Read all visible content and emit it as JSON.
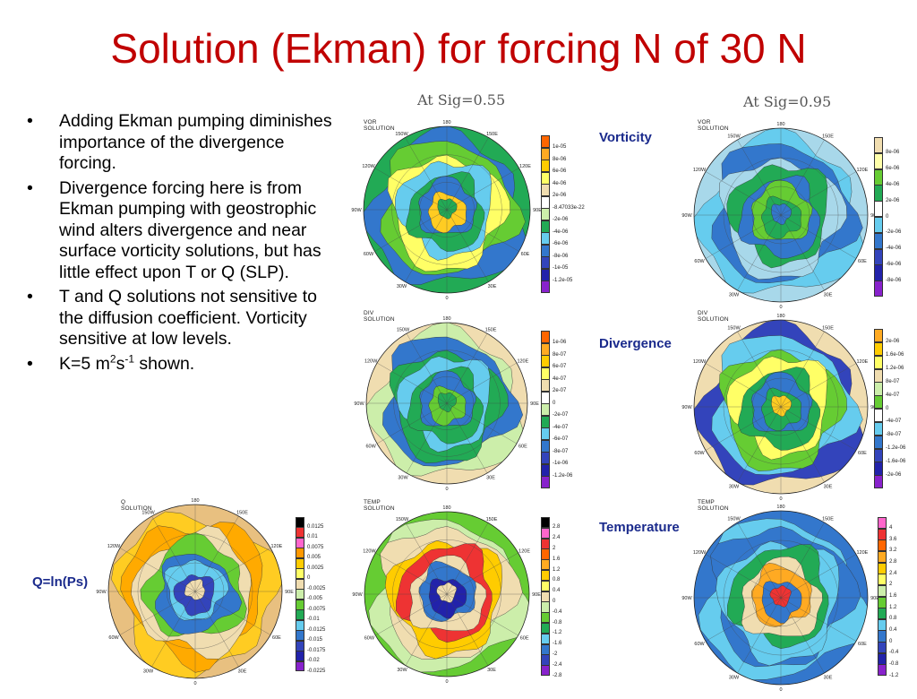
{
  "slide": {
    "title": "Solution (Ekman) for forcing N of 30 N",
    "bullets": [
      "Adding Ekman pumping diminishes importance of the divergence forcing.",
      "Divergence forcing here is from Ekman pumping with geostrophic wind alters divergence and near surface vorticity solutions, but has little effect upon T or Q (SLP).",
      "T and Q solutions not sensitive to the diffusion coefficient. Vorticity sensitive at low levels."
    ],
    "k_prefix": "K=5 m",
    "k_sup1": "2",
    "k_mid": "s",
    "k_sup2": "-1",
    "k_suffix": " shown."
  },
  "headers": {
    "left": "At Sig=0.55",
    "right": "At Sig=0.95"
  },
  "row_labels": {
    "vorticity": "Vorticity",
    "divergence": "Divergence",
    "temperature": "Temperature",
    "q": "Q=ln(Ps)"
  },
  "longitude_labels": {
    "top": "180",
    "tl": "150W",
    "tr": "150E",
    "ul": "120W",
    "ur": "120E",
    "ml": "90W",
    "mr": "90E",
    "ll": "60W",
    "lr": "60E",
    "bl": "30W",
    "br": "30E",
    "bottom": "0"
  },
  "panels": [
    {
      "id": "q",
      "title": "Q SOLUTION",
      "colors": [
        "#000000",
        "#ee3333",
        "#ff66cc",
        "#ff9900",
        "#ffcc00",
        "#ffff66",
        "#f0ddb0",
        "#cceeaa",
        "#66cc33",
        "#22aa55",
        "#66ccee",
        "#3377cc",
        "#3344bb",
        "#2222aa",
        "#8822cc"
      ],
      "ticks": [
        "0.0125",
        "0.01",
        "0.0075",
        "0.005",
        "0.0025",
        "0",
        "-0.0025",
        "-0.005",
        "-0.0075",
        "-0.01",
        "-0.0125",
        "-0.015",
        "-0.0175",
        "-0.02",
        "-0.0225"
      ],
      "rings": [
        "#e8c080",
        "#ffcc22",
        "#ffaa00",
        "#f0ddb0",
        "#66cc33",
        "#3377cc",
        "#66ccee",
        "#3344bb",
        "#f0ddb0"
      ]
    },
    {
      "id": "vor55",
      "title": "VOR SOLUTION",
      "colors": [
        "#ff6600",
        "#ffaa22",
        "#ffcc00",
        "#ffff66",
        "#f0ddb0",
        "#ffffff",
        "#cceeaa",
        "#22aa55",
        "#66ccee",
        "#3377cc",
        "#3344bb",
        "#2222aa",
        "#8822cc"
      ],
      "ticks": [
        "1e-05",
        "8e-06",
        "6e-06",
        "4e-06",
        "2e-06",
        "-8.47033e-22",
        "-2e-06",
        "-4e-06",
        "-6e-06",
        "-8e-06",
        "-1e-05",
        "-1.2e-05"
      ],
      "rings": [
        "#22aa55",
        "#3377cc",
        "#66cc33",
        "#ffff66",
        "#66ccee",
        "#22aa55",
        "#3377cc",
        "#ffcc22",
        "#22aa55"
      ]
    },
    {
      "id": "vor95",
      "title": "VOR SOLUTION",
      "colors": [
        "#f0ddb0",
        "#ffffaa",
        "#66cc33",
        "#22aa55",
        "#ffffff",
        "#66ccee",
        "#3377cc",
        "#3344bb",
        "#2222aa",
        "#8822cc"
      ],
      "ticks": [
        "8e-06",
        "6e-06",
        "4e-06",
        "2e-06",
        "0",
        "-2e-06",
        "-4e-06",
        "-6e-06",
        "-8e-06"
      ],
      "rings": [
        "#a8d8ea",
        "#66ccee",
        "#3377cc",
        "#a8d8ea",
        "#22aa55",
        "#3377cc",
        "#66cc33",
        "#22aa55",
        "#3377cc"
      ]
    },
    {
      "id": "div55",
      "title": "DIV SOLUTION",
      "colors": [
        "#ff6600",
        "#ffaa22",
        "#ffcc00",
        "#ffff66",
        "#f0ddb0",
        "#ffffff",
        "#cceeaa",
        "#22aa55",
        "#66ccee",
        "#3377cc",
        "#3344bb",
        "#2222aa",
        "#8822cc"
      ],
      "ticks": [
        "1e-06",
        "8e-07",
        "6e-07",
        "4e-07",
        "2e-07",
        "0",
        "-2e-07",
        "-4e-07",
        "-6e-07",
        "-8e-07",
        "-1e-06",
        "-1.2e-06"
      ],
      "rings": [
        "#f0ddb0",
        "#cceeaa",
        "#3377cc",
        "#22aa55",
        "#66ccee",
        "#22aa55",
        "#3377cc",
        "#66cc33",
        "#22aa55"
      ]
    },
    {
      "id": "div95",
      "title": "DIV SOLUTION",
      "colors": [
        "#ffaa22",
        "#ffcc00",
        "#ffff66",
        "#f0ddb0",
        "#cceeaa",
        "#66cc33",
        "#ffffff",
        "#66ccee",
        "#3377cc",
        "#3344bb",
        "#2222aa",
        "#8822cc"
      ],
      "ticks": [
        "2e-06",
        "1.6e-06",
        "1.2e-06",
        "8e-07",
        "4e-07",
        "0",
        "-4e-07",
        "-8e-07",
        "-1.2e-06",
        "-1.6e-06",
        "-2e-06"
      ],
      "rings": [
        "#f0ddb0",
        "#3344bb",
        "#66ccee",
        "#66cc33",
        "#ffff66",
        "#22aa55",
        "#3377cc",
        "#22aa55",
        "#ffcc22"
      ]
    },
    {
      "id": "temp55",
      "title": "TEMP SOLUTION",
      "colors": [
        "#000000",
        "#ff66cc",
        "#ee3333",
        "#ff6600",
        "#ffaa22",
        "#ffcc00",
        "#ffff66",
        "#f0ddb0",
        "#cceeaa",
        "#66cc33",
        "#22aa55",
        "#66ccee",
        "#3377cc",
        "#3344bb",
        "#8822cc"
      ],
      "ticks": [
        "2.8",
        "2.4",
        "2",
        "1.6",
        "1.2",
        "0.8",
        "0.4",
        "0",
        "-0.4",
        "-0.8",
        "-1.2",
        "-1.6",
        "-2",
        "-2.4",
        "-2.8"
      ],
      "rings": [
        "#66cc33",
        "#cceeaa",
        "#f0ddb0",
        "#ffcc00",
        "#ee3333",
        "#f0ddb0",
        "#3377cc",
        "#2222aa",
        "#f0ddb0"
      ]
    },
    {
      "id": "temp95",
      "title": "TEMP SOLUTION",
      "colors": [
        "#ff66cc",
        "#ee3333",
        "#ff6600",
        "#ffaa22",
        "#ffcc00",
        "#ffff66",
        "#cceeaa",
        "#66cc33",
        "#22aa55",
        "#66ccee",
        "#3377cc",
        "#3344bb",
        "#2222aa",
        "#8822cc"
      ],
      "ticks": [
        "4",
        "3.6",
        "3.2",
        "2.8",
        "2.4",
        "2",
        "1.6",
        "1.2",
        "0.8",
        "0.4",
        "0",
        "-0.4",
        "-0.8",
        "-1.2"
      ],
      "rings": [
        "#3377cc",
        "#66ccee",
        "#3377cc",
        "#66ccee",
        "#22aa55",
        "#f0ddb0",
        "#ffaa22",
        "#3377cc",
        "#ee3333"
      ]
    }
  ]
}
